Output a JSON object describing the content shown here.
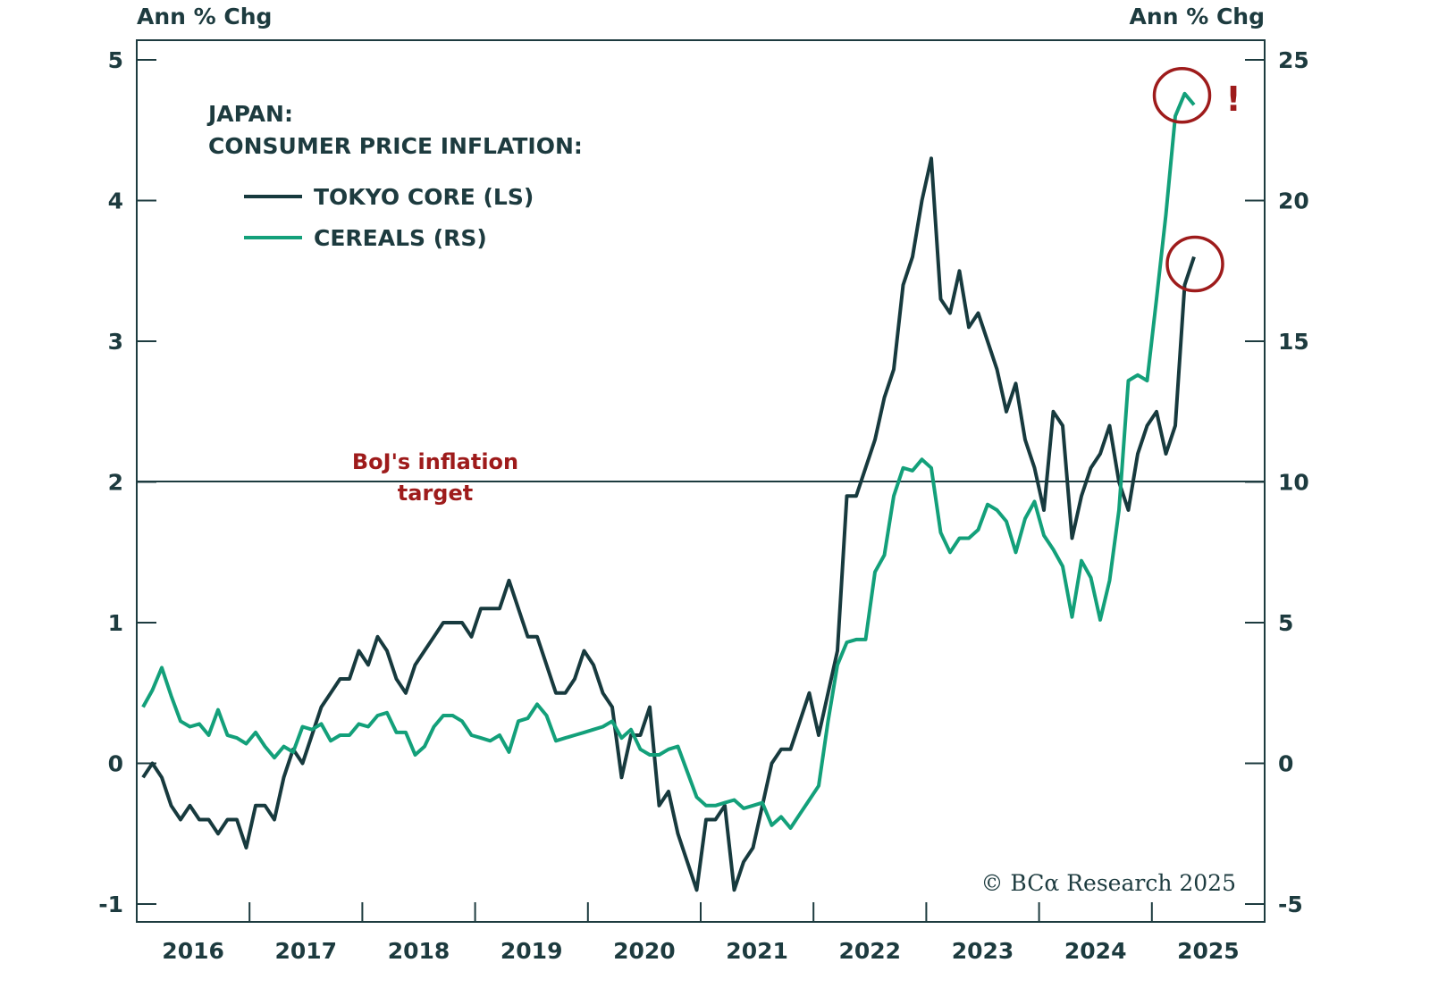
{
  "chart_data": {
    "type": "line",
    "title": "JAPAN:",
    "subtitle": "CONSUMER PRICE INFLATION:",
    "ylabel_left": "Ann % Chg",
    "ylabel_right": "Ann % Chg",
    "ylim_left": [
      -1,
      5
    ],
    "ylim_right": [
      -5,
      25
    ],
    "yticks_left": [
      "5",
      "4",
      "3",
      "2",
      "1",
      "0",
      "-1"
    ],
    "yticks_right": [
      "25",
      "20",
      "15",
      "10",
      "5",
      "0",
      "-5"
    ],
    "xticks": [
      "2016",
      "2017",
      "2018",
      "2019",
      "2020",
      "2021",
      "2022",
      "2023",
      "2024",
      "2025"
    ],
    "x_start": "2016-01",
    "x_frequency": "monthly",
    "reference_line": {
      "value": 2,
      "axis": "left",
      "label_line1": "BoJ's inflation",
      "label_line2": "target"
    },
    "annotation_mark": "!",
    "source": "© BCα Research 2025",
    "series": [
      {
        "name": "TOKYO CORE (LS)",
        "axis": "left",
        "color": "#173a3e",
        "values": [
          -0.1,
          0.0,
          -0.1,
          -0.3,
          -0.4,
          -0.3,
          -0.4,
          -0.4,
          -0.5,
          -0.4,
          -0.4,
          -0.6,
          -0.3,
          -0.3,
          -0.4,
          -0.1,
          0.1,
          0.0,
          0.2,
          0.4,
          0.5,
          0.6,
          0.6,
          0.8,
          0.7,
          0.9,
          0.8,
          0.6,
          0.5,
          0.7,
          0.8,
          0.9,
          1.0,
          1.0,
          1.0,
          0.9,
          1.1,
          1.1,
          1.1,
          1.3,
          1.1,
          0.9,
          0.9,
          0.7,
          0.5,
          0.5,
          0.6,
          0.8,
          0.7,
          0.5,
          0.4,
          -0.1,
          0.2,
          0.2,
          0.4,
          -0.3,
          -0.2,
          -0.5,
          -0.7,
          -0.9,
          -0.4,
          -0.4,
          -0.3,
          -0.9,
          -0.7,
          -0.6,
          -0.3,
          0.0,
          0.1,
          0.1,
          0.3,
          0.5,
          0.2,
          0.5,
          0.8,
          1.9,
          1.9,
          2.1,
          2.3,
          2.6,
          2.8,
          3.4,
          3.6,
          4.0,
          4.3,
          3.3,
          3.2,
          3.5,
          3.1,
          3.2,
          3.0,
          2.8,
          2.5,
          2.7,
          2.3,
          2.1,
          1.8,
          2.5,
          2.4,
          1.6,
          1.9,
          2.1,
          2.2,
          2.4,
          2.0,
          1.8,
          2.2,
          2.4,
          2.5,
          2.2,
          2.4,
          3.4,
          3.6
        ]
      },
      {
        "name": "CEREALS (RS)",
        "axis": "right",
        "color": "#13a07a",
        "values": [
          2.0,
          2.6,
          3.4,
          2.4,
          1.5,
          1.3,
          1.4,
          1.0,
          1.9,
          1.0,
          0.9,
          0.7,
          1.1,
          0.6,
          0.2,
          0.6,
          0.4,
          1.3,
          1.2,
          1.4,
          0.8,
          1.0,
          1.0,
          1.4,
          1.3,
          1.7,
          1.8,
          1.1,
          1.1,
          0.3,
          0.6,
          1.3,
          1.7,
          1.7,
          1.5,
          1.0,
          0.9,
          0.8,
          1.0,
          0.4,
          1.5,
          1.6,
          2.1,
          1.7,
          0.8,
          0.9,
          1.0,
          1.1,
          1.2,
          1.3,
          1.5,
          0.9,
          1.2,
          0.5,
          0.3,
          0.3,
          0.5,
          0.6,
          -0.3,
          -1.2,
          -1.5,
          -1.5,
          -1.4,
          -1.3,
          -1.6,
          -1.5,
          -1.4,
          -2.2,
          -1.9,
          -2.3,
          -1.8,
          -1.3,
          -0.8,
          1.5,
          3.5,
          4.3,
          4.4,
          4.4,
          6.8,
          7.4,
          9.5,
          10.5,
          10.4,
          10.8,
          10.5,
          8.2,
          7.5,
          8.0,
          8.0,
          8.3,
          9.2,
          9.0,
          8.6,
          7.5,
          8.7,
          9.3,
          8.1,
          7.6,
          7.0,
          5.2,
          7.2,
          6.6,
          5.1,
          6.5,
          9.0,
          13.6,
          13.8,
          13.6,
          16.5,
          19.5,
          23.0,
          23.8,
          23.4
        ]
      }
    ]
  }
}
